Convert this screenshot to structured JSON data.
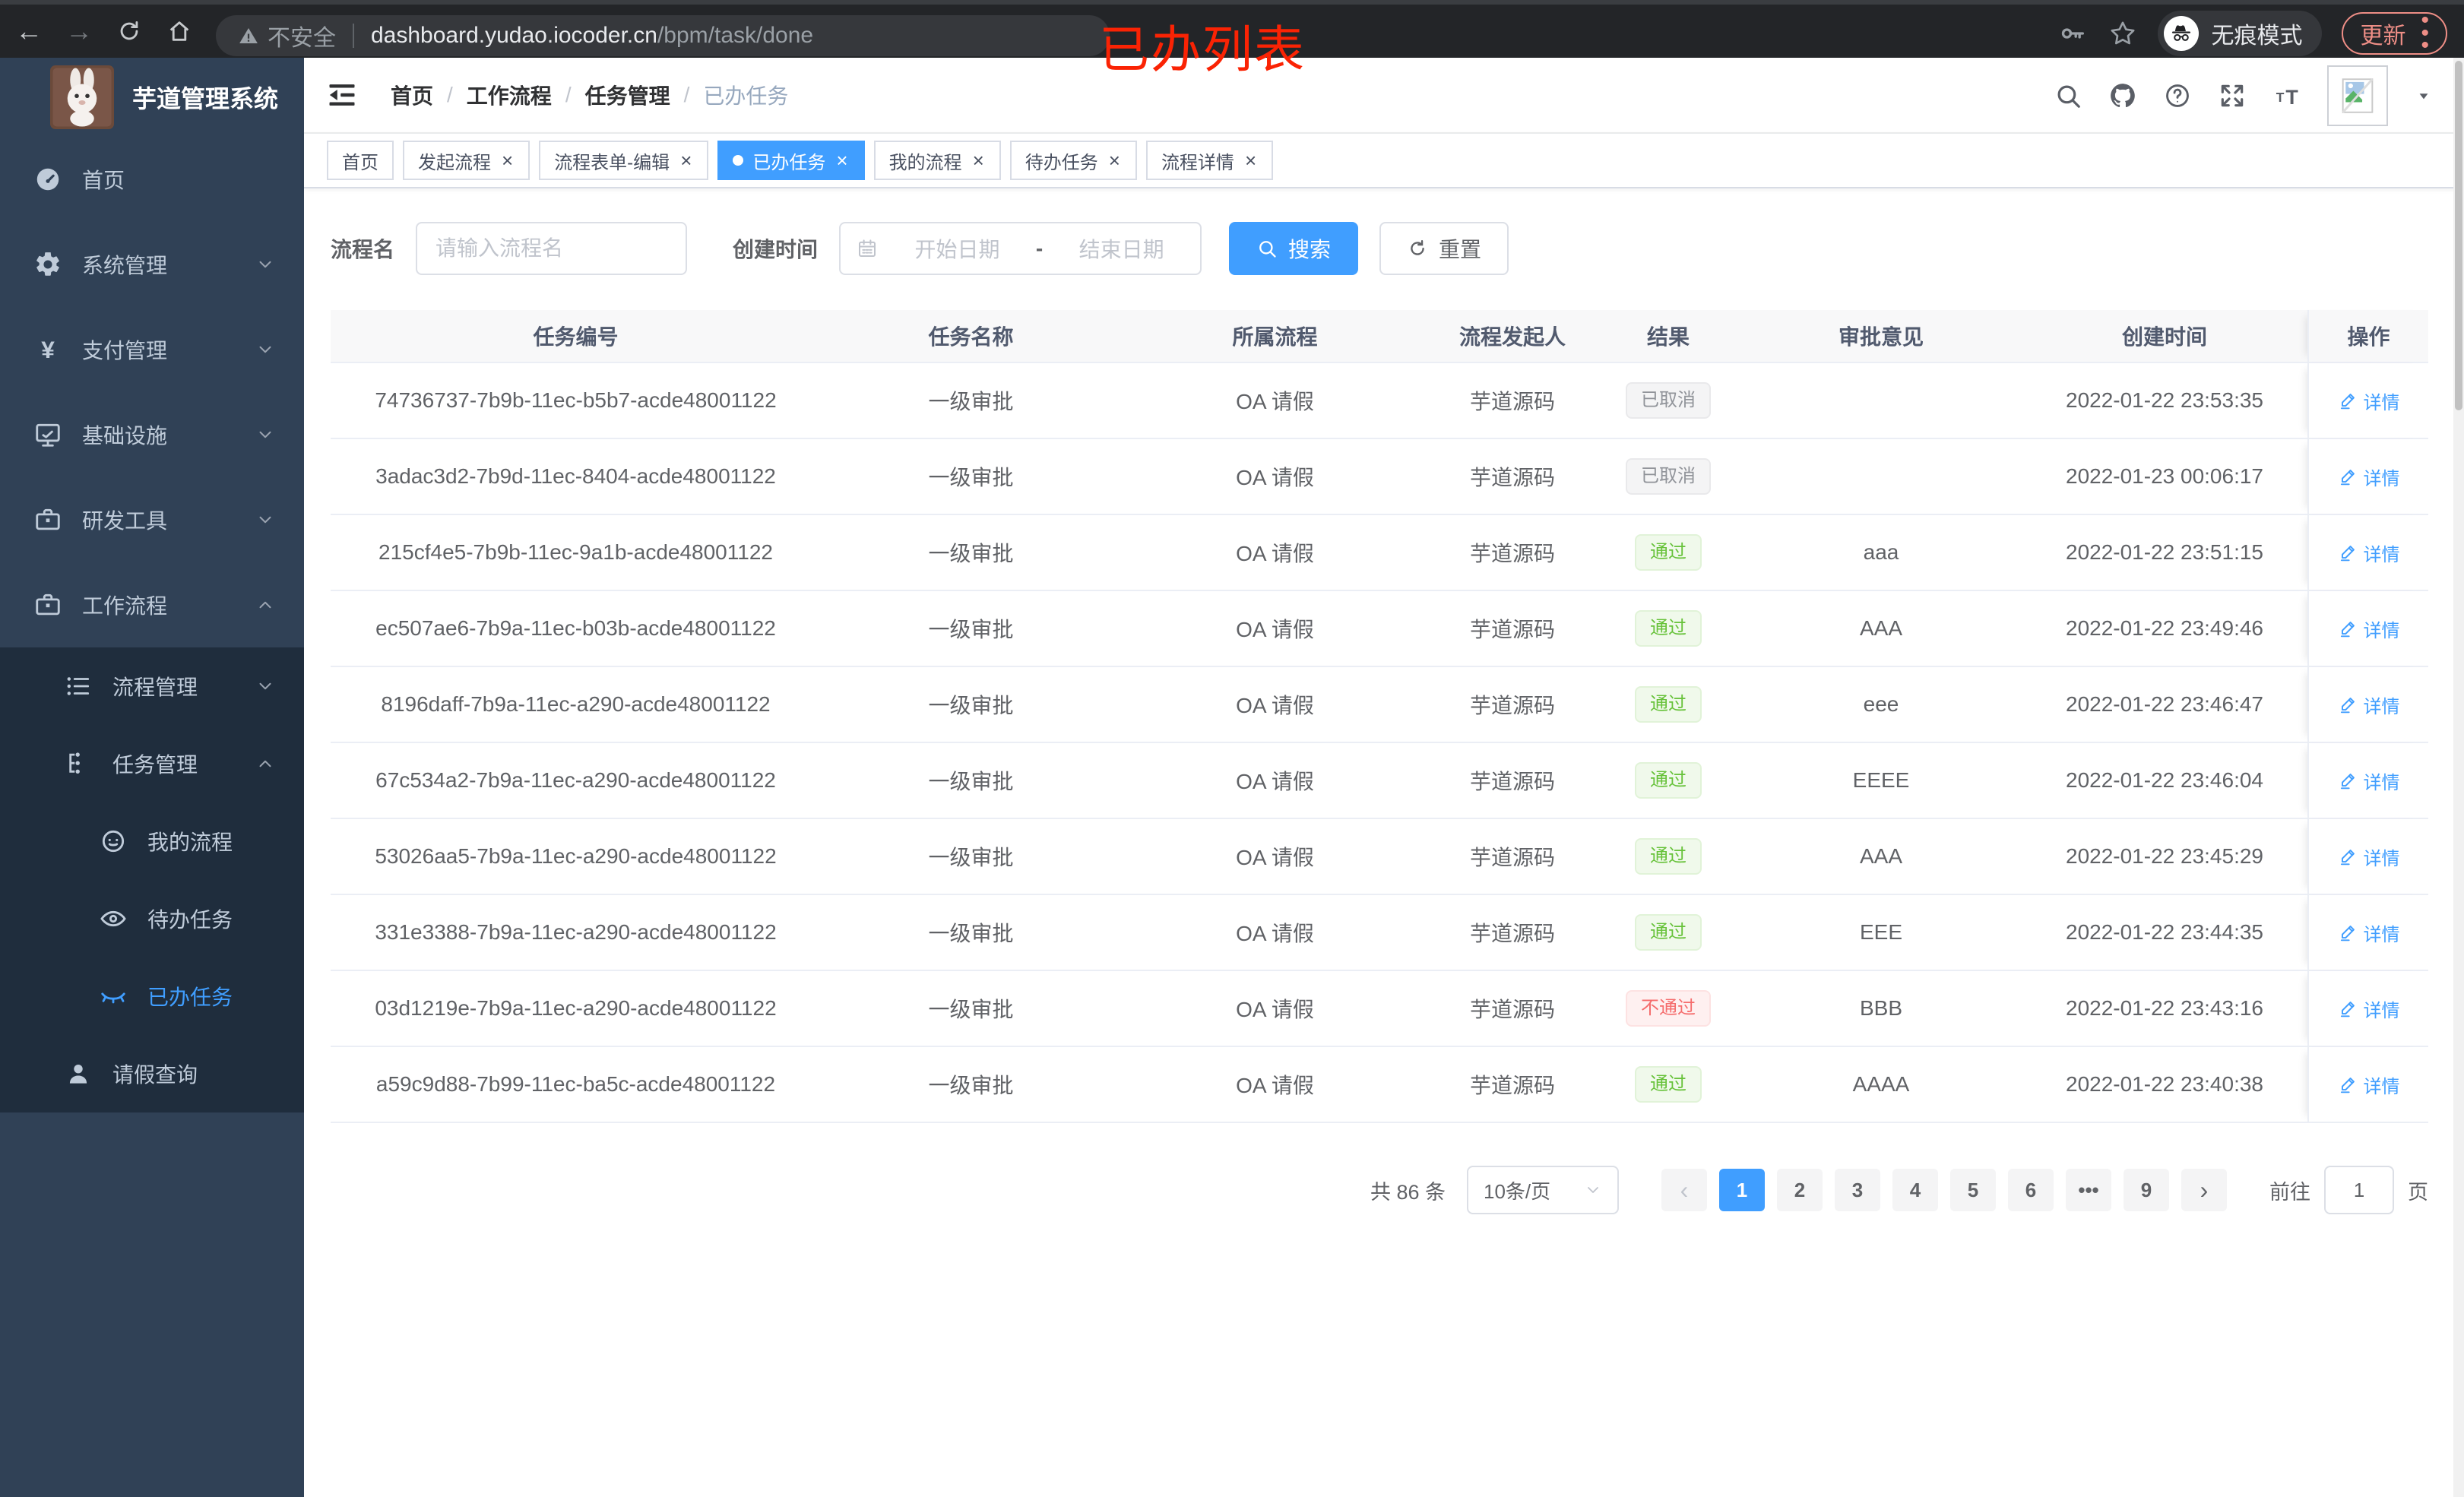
{
  "browser": {
    "security_label": "不安全",
    "url_host": "dashboard.yudao.iocoder.cn",
    "url_path": "/bpm/task/done",
    "overlay_title": "已办列表",
    "incognito_label": "无痕模式",
    "update_label": "更新"
  },
  "sidebar": {
    "app_title": "芋道管理系统",
    "items": [
      {
        "key": "home",
        "label": "首页",
        "icon": "gauge",
        "indent": 0,
        "sub": false,
        "chevron": null,
        "active": false
      },
      {
        "key": "system",
        "label": "系统管理",
        "icon": "gear",
        "indent": 0,
        "sub": false,
        "chevron": "down",
        "active": false
      },
      {
        "key": "payment",
        "label": "支付管理",
        "icon": "yen",
        "indent": 0,
        "sub": false,
        "chevron": "down",
        "active": false
      },
      {
        "key": "infrastructure",
        "label": "基础设施",
        "icon": "monitor",
        "indent": 0,
        "sub": false,
        "chevron": "down",
        "active": false
      },
      {
        "key": "dev-tools",
        "label": "研发工具",
        "icon": "briefcase",
        "indent": 0,
        "sub": false,
        "chevron": "down",
        "active": false
      },
      {
        "key": "workflow",
        "label": "工作流程",
        "icon": "briefcase",
        "indent": 0,
        "sub": false,
        "chevron": "up",
        "active": false
      },
      {
        "key": "process-mgmt",
        "label": "流程管理",
        "icon": "list",
        "indent": 1,
        "sub": true,
        "chevron": "down",
        "active": false
      },
      {
        "key": "task-mgmt",
        "label": "任务管理",
        "icon": "org",
        "indent": 1,
        "sub": true,
        "chevron": "up",
        "active": false
      },
      {
        "key": "my-process",
        "label": "我的流程",
        "icon": "face",
        "indent": 2,
        "sub": true,
        "chevron": null,
        "active": false
      },
      {
        "key": "todo-tasks",
        "label": "待办任务",
        "icon": "eye",
        "indent": 2,
        "sub": true,
        "chevron": null,
        "active": false
      },
      {
        "key": "done-tasks",
        "label": "已办任务",
        "icon": "eye-closed",
        "indent": 2,
        "sub": true,
        "chevron": null,
        "active": true
      },
      {
        "key": "leave-query",
        "label": "请假查询",
        "icon": "person",
        "indent": 1,
        "sub": true,
        "chevron": null,
        "active": false
      }
    ]
  },
  "breadcrumb": [
    "首页",
    "工作流程",
    "任务管理",
    "已办任务"
  ],
  "tabs": [
    {
      "key": "home",
      "label": "首页",
      "closable": false,
      "active": false
    },
    {
      "key": "start-process",
      "label": "发起流程",
      "closable": true,
      "active": false
    },
    {
      "key": "form-edit",
      "label": "流程表单-编辑",
      "closable": true,
      "active": false
    },
    {
      "key": "done-tasks",
      "label": "已办任务",
      "closable": true,
      "active": true
    },
    {
      "key": "my-process",
      "label": "我的流程",
      "closable": true,
      "active": false
    },
    {
      "key": "todo-tasks",
      "label": "待办任务",
      "closable": true,
      "active": false
    },
    {
      "key": "process-detail",
      "label": "流程详情",
      "closable": true,
      "active": false
    }
  ],
  "filters": {
    "name_label": "流程名",
    "name_placeholder": "请输入流程名",
    "date_label": "创建时间",
    "date_start_placeholder": "开始日期",
    "date_separator": "-",
    "date_end_placeholder": "结束日期",
    "search_label": "搜索",
    "reset_label": "重置"
  },
  "table": {
    "columns": [
      "任务编号",
      "任务名称",
      "所属流程",
      "流程发起人",
      "结果",
      "审批意见",
      "创建时间",
      "操作"
    ],
    "rows": [
      {
        "id": "74736737-7b9b-11ec-b5b7-acde48001122",
        "name": "一级审批",
        "process": "OA 请假",
        "starter": "芋道源码",
        "result": "已取消",
        "result_type": "info",
        "comment": "",
        "created": "2022-01-22 23:53:35",
        "action": "详情"
      },
      {
        "id": "3adac3d2-7b9d-11ec-8404-acde48001122",
        "name": "一级审批",
        "process": "OA 请假",
        "starter": "芋道源码",
        "result": "已取消",
        "result_type": "info",
        "comment": "",
        "created": "2022-01-23 00:06:17",
        "action": "详情"
      },
      {
        "id": "215cf4e5-7b9b-11ec-9a1b-acde48001122",
        "name": "一级审批",
        "process": "OA 请假",
        "starter": "芋道源码",
        "result": "通过",
        "result_type": "success",
        "comment": "aaa",
        "created": "2022-01-22 23:51:15",
        "action": "详情"
      },
      {
        "id": "ec507ae6-7b9a-11ec-b03b-acde48001122",
        "name": "一级审批",
        "process": "OA 请假",
        "starter": "芋道源码",
        "result": "通过",
        "result_type": "success",
        "comment": "AAA",
        "created": "2022-01-22 23:49:46",
        "action": "详情"
      },
      {
        "id": "8196daff-7b9a-11ec-a290-acde48001122",
        "name": "一级审批",
        "process": "OA 请假",
        "starter": "芋道源码",
        "result": "通过",
        "result_type": "success",
        "comment": "eee",
        "created": "2022-01-22 23:46:47",
        "action": "详情"
      },
      {
        "id": "67c534a2-7b9a-11ec-a290-acde48001122",
        "name": "一级审批",
        "process": "OA 请假",
        "starter": "芋道源码",
        "result": "通过",
        "result_type": "success",
        "comment": "EEEE",
        "created": "2022-01-22 23:46:04",
        "action": "详情"
      },
      {
        "id": "53026aa5-7b9a-11ec-a290-acde48001122",
        "name": "一级审批",
        "process": "OA 请假",
        "starter": "芋道源码",
        "result": "通过",
        "result_type": "success",
        "comment": "AAA",
        "created": "2022-01-22 23:45:29",
        "action": "详情"
      },
      {
        "id": "331e3388-7b9a-11ec-a290-acde48001122",
        "name": "一级审批",
        "process": "OA 请假",
        "starter": "芋道源码",
        "result": "通过",
        "result_type": "success",
        "comment": "EEE",
        "created": "2022-01-22 23:44:35",
        "action": "详情"
      },
      {
        "id": "03d1219e-7b9a-11ec-a290-acde48001122",
        "name": "一级审批",
        "process": "OA 请假",
        "starter": "芋道源码",
        "result": "不通过",
        "result_type": "danger",
        "comment": "BBB",
        "created": "2022-01-22 23:43:16",
        "action": "详情"
      },
      {
        "id": "a59c9d88-7b99-11ec-ba5c-acde48001122",
        "name": "一级审批",
        "process": "OA 请假",
        "starter": "芋道源码",
        "result": "通过",
        "result_type": "success",
        "comment": "AAAA",
        "created": "2022-01-22 23:40:38",
        "action": "详情"
      }
    ]
  },
  "pagination": {
    "total_label": "共 86 条",
    "page_size_label": "10条/页",
    "pages": [
      "1",
      "2",
      "3",
      "4",
      "5",
      "6",
      "•••",
      "9"
    ],
    "active_page": "1",
    "prev_label": "‹",
    "next_label": "›",
    "goto_label": "前往",
    "goto_value": "1",
    "goto_suffix": "页"
  },
  "colors": {
    "accent": "#409eff",
    "success": "#67c23a",
    "danger": "#f56c6c",
    "info": "#909399",
    "sidebar_bg": "#304156",
    "submenu_bg": "#1f2d3d",
    "update_pill": "#ee8e86",
    "overlay_red": "#fa2304"
  }
}
